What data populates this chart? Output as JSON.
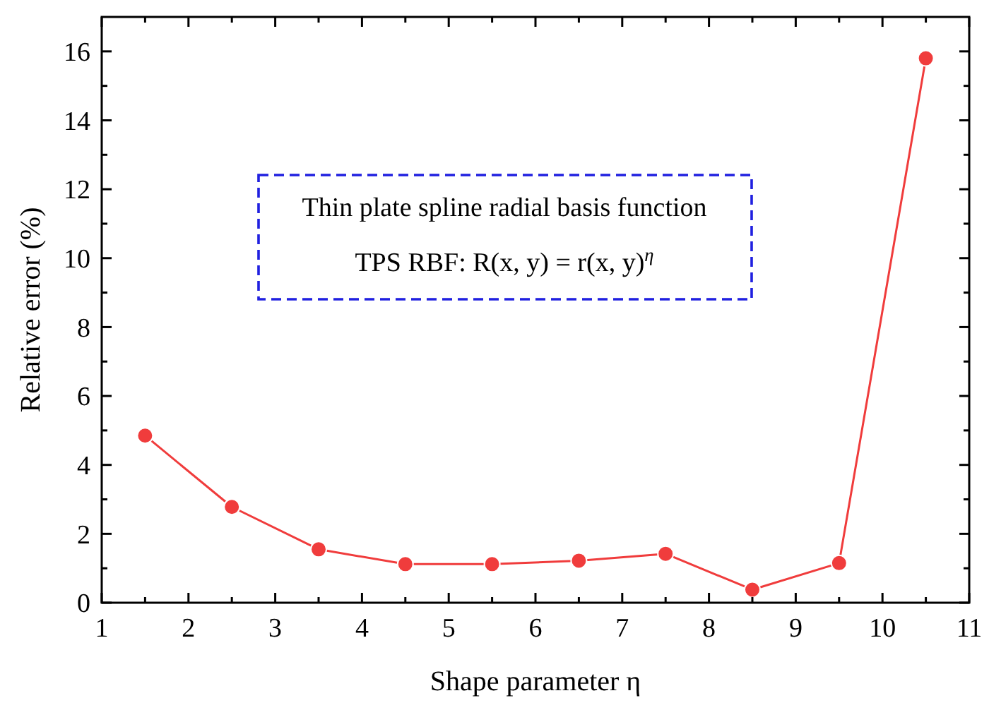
{
  "chart_data": {
    "type": "line",
    "xlabel": "Shape parameter η",
    "ylabel": "Relative error (%)",
    "annotations": [
      "Thin plate spline radial basis function",
      "TPS RBF: R(x, y) = r(x, y)$^{η}$"
    ],
    "x": [
      1.5,
      2.5,
      3.5,
      4.5,
      5.5,
      6.5,
      7.5,
      8.5,
      9.5,
      10.5
    ],
    "series": [
      {
        "color": "#f03c3c",
        "values": [
          4.85,
          2.78,
          1.55,
          1.12,
          1.12,
          1.22,
          1.42,
          0.38,
          1.15,
          15.8
        ]
      }
    ],
    "xlim": [
      1,
      11
    ],
    "xticks": [
      1,
      {
        "value": 1.5,
        "label": null
      },
      2,
      {
        "value": 2.5,
        "label": null
      },
      3,
      {
        "value": 3.5,
        "label": null
      },
      4,
      {
        "value": 4.5,
        "label": null
      },
      5,
      {
        "value": 5.5,
        "label": null
      },
      6,
      {
        "value": 6.5,
        "label": null
      },
      7,
      {
        "value": 7.5,
        "label": null
      },
      8,
      {
        "value": 8.5,
        "label": null
      },
      9,
      {
        "value": 9.5,
        "label": null
      },
      10,
      {
        "value": 10.5,
        "label": null
      },
      11
    ],
    "ylim": [
      0,
      17
    ],
    "yticks": [
      0,
      {
        "value": 1,
        "label": null
      },
      2,
      {
        "value": 3,
        "label": null
      },
      4,
      {
        "value": 5,
        "label": null
      },
      6,
      {
        "value": 7,
        "label": null
      },
      8,
      {
        "value": 9,
        "label": null
      },
      10,
      {
        "value": 11,
        "label": null
      },
      12,
      {
        "value": 13,
        "label": null
      },
      14,
      {
        "value": 15,
        "label": null
      },
      16
    ],
    "grid": false,
    "marker": "circle",
    "line_style": "solid"
  }
}
